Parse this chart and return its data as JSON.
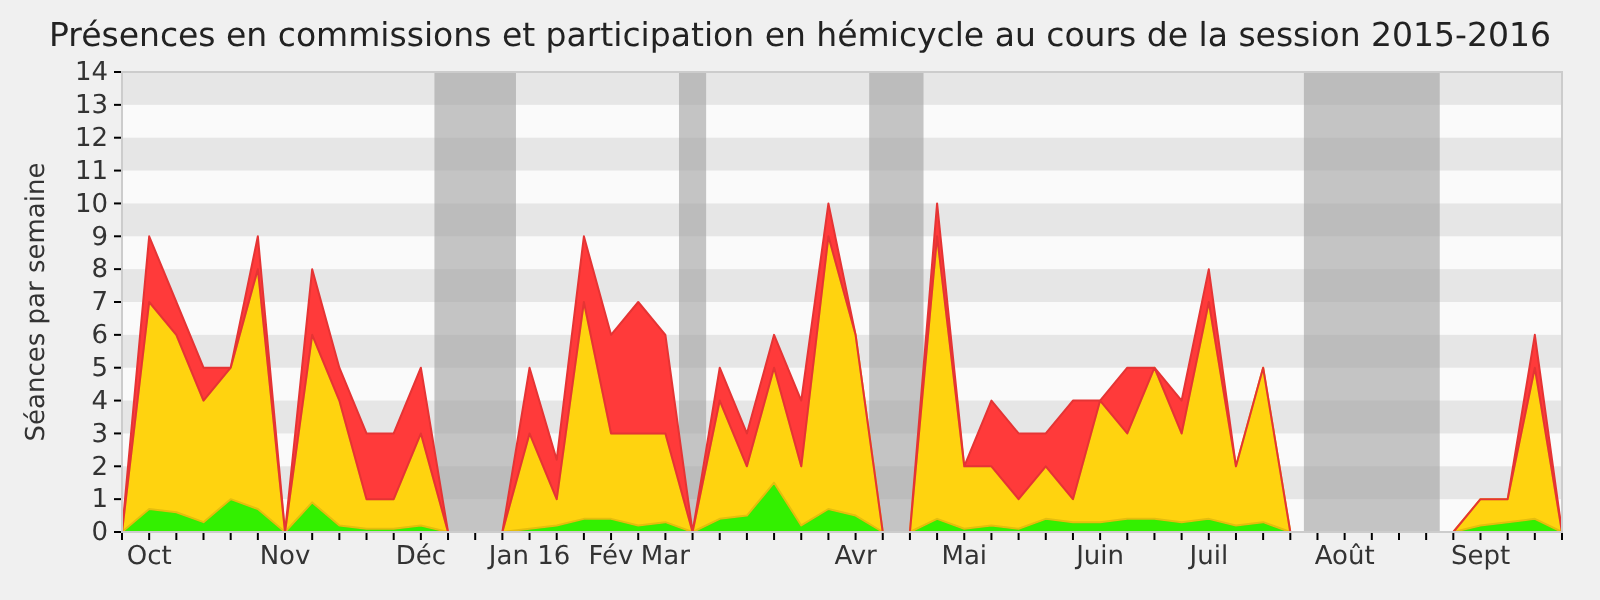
{
  "chart_data": {
    "type": "area",
    "stacked": true,
    "title": "Présences en commissions et participation en hémicycle au cours de la session 2015-2016",
    "ylabel": "Séances par semaine",
    "categories": [
      null,
      "Oct",
      null,
      null,
      null,
      null,
      "Nov",
      null,
      null,
      null,
      null,
      "Déc",
      null,
      null,
      null,
      "Jan 16",
      null,
      null,
      "Fév",
      null,
      "Mar",
      null,
      null,
      null,
      null,
      null,
      null,
      "Avr",
      null,
      null,
      null,
      "Mai",
      null,
      null,
      null,
      null,
      "Juin",
      null,
      null,
      null,
      "Juil",
      null,
      null,
      null,
      null,
      "Août",
      null,
      null,
      null,
      null,
      "Sept",
      null,
      null,
      null
    ],
    "series": [
      {
        "color": "#33f000",
        "values": [
          0,
          0.7,
          0.6,
          0.3,
          1,
          0.7,
          0,
          0.9,
          0.2,
          0.1,
          0.1,
          0.2,
          0,
          0,
          0,
          0.1,
          0.2,
          0.4,
          0.4,
          0.2,
          0.3,
          0,
          0.4,
          0.5,
          1.5,
          0.2,
          0.7,
          0.5,
          0,
          0,
          0.4,
          0.1,
          0.2,
          0.1,
          0.4,
          0.3,
          0.3,
          0.4,
          0.4,
          0.3,
          0.4,
          0.2,
          0.3,
          0,
          0,
          0,
          0,
          0,
          0,
          0,
          0.2,
          0.3,
          0.4,
          0
        ]
      },
      {
        "color": "#ffd30f",
        "values": [
          0,
          6.3,
          5.4,
          3.7,
          4,
          7.3,
          0,
          5.1,
          3.8,
          0.9,
          0.9,
          2.8,
          0,
          0,
          0,
          2.9,
          0.8,
          6.6,
          2.6,
          2.8,
          2.7,
          0,
          3.6,
          1.5,
          3.5,
          1.8,
          8.3,
          5.5,
          0,
          0,
          8.6,
          1.9,
          1.8,
          0.9,
          1.6,
          0.7,
          3.7,
          2.6,
          4.6,
          2.7,
          6.6,
          1.8,
          4.7,
          0,
          0,
          0,
          0,
          0,
          0,
          0,
          0.8,
          0.7,
          4.6,
          0
        ]
      },
      {
        "color": "#ff3a3a",
        "values": [
          0,
          2,
          1,
          1,
          0,
          1,
          0,
          2,
          1,
          2,
          2,
          2,
          0,
          0,
          0,
          2,
          1.2,
          2,
          3,
          4,
          3,
          0,
          1,
          1,
          1,
          2,
          1,
          0,
          0,
          0,
          1,
          0,
          2,
          2,
          1,
          3,
          0,
          2,
          0,
          1,
          1,
          0,
          0,
          0,
          0,
          0,
          0,
          0,
          0,
          0,
          0,
          0,
          1,
          0
        ]
      }
    ],
    "ylim": [
      0,
      14
    ],
    "yticks": [
      0,
      1,
      2,
      3,
      4,
      5,
      6,
      7,
      8,
      9,
      10,
      11,
      12,
      13,
      14
    ]
  }
}
